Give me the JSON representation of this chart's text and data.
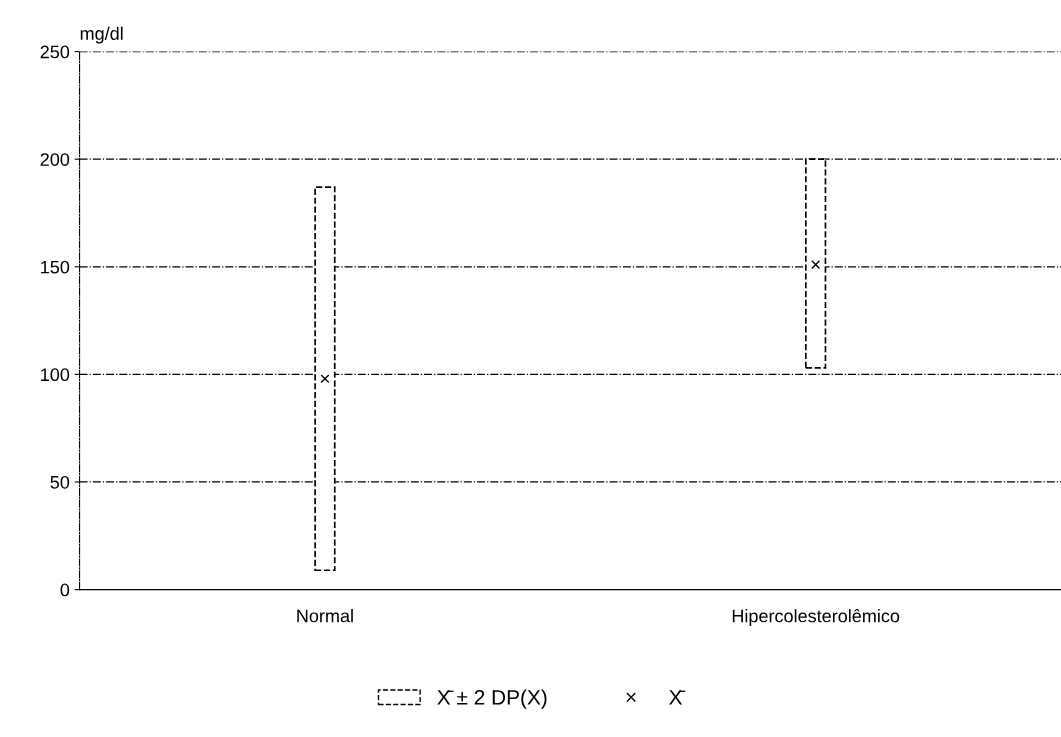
{
  "chart_data": {
    "type": "bar",
    "ylabel": "mg/dl",
    "categories": [
      "Normal",
      "Hipercolesterolêmico"
    ],
    "series": [
      {
        "name": "X̄ ± 2 DP(X)",
        "color": "#000000",
        "base": [
          9,
          103
        ],
        "values": [
          178,
          97
        ]
      },
      {
        "name": "X̄",
        "type": "scatter",
        "color": "#000000",
        "x": [
          "Normal",
          "Hipercolesterolêmico"
        ],
        "values": [
          98,
          151
        ],
        "marker": "cross"
      }
    ],
    "ylim": [
      0,
      250
    ],
    "yticks": [
      0,
      50,
      100,
      150,
      200,
      250
    ],
    "grid": "y",
    "legend": "bottom",
    "line_style": "dashed"
  }
}
